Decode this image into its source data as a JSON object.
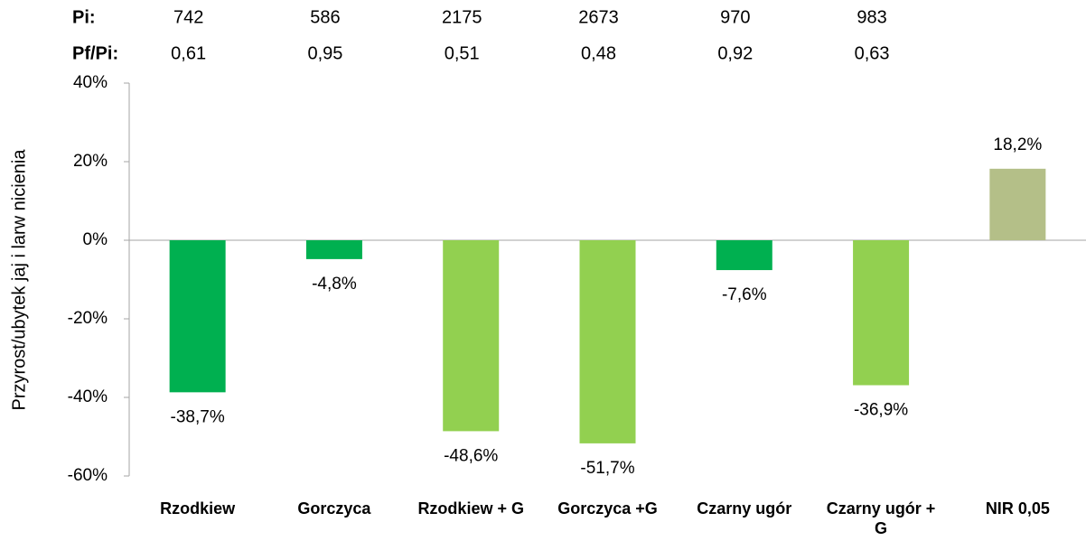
{
  "chart_data": {
    "type": "bar",
    "y_axis_label": "Przyrost/ubytek jaj i larw nicienia",
    "categories": [
      "Rzodkiew",
      "Gorczyca",
      "Rzodkiew + G",
      "Gorczyca +G",
      "Czarny ugór",
      "Czarny ugór + G",
      "NIR 0,05"
    ],
    "values": [
      -38.7,
      -4.8,
      -48.6,
      -51.7,
      -7.6,
      -36.9,
      18.2
    ],
    "value_labels": [
      "-38,7%",
      "-4,8%",
      "-48,6%",
      "-51,7%",
      "-7,6%",
      "-36,9%",
      "18,2%"
    ],
    "colors": [
      "#00b050",
      "#00b050",
      "#92d050",
      "#92d050",
      "#00b050",
      "#92d050",
      "#b4bf88"
    ],
    "ylim": [
      -60,
      40
    ],
    "yticks": [
      {
        "value": -60,
        "label": "-60%"
      },
      {
        "value": -40,
        "label": "-40%"
      },
      {
        "value": -20,
        "label": "-20%"
      },
      {
        "value": 0,
        "label": "0%"
      },
      {
        "value": 20,
        "label": "20%"
      },
      {
        "value": 40,
        "label": "40%"
      }
    ],
    "grid": false,
    "rows": [
      {
        "label": "Pi:",
        "values": [
          742,
          586,
          2175,
          2673,
          970,
          983
        ]
      },
      {
        "label": "Pf/Pi:",
        "values": [
          0.61,
          0.95,
          0.51,
          0.48,
          0.92,
          0.63
        ],
        "value_labels": [
          "0,61",
          "0,95",
          "0,51",
          "0,48",
          "0,92",
          "0,63"
        ]
      }
    ]
  }
}
